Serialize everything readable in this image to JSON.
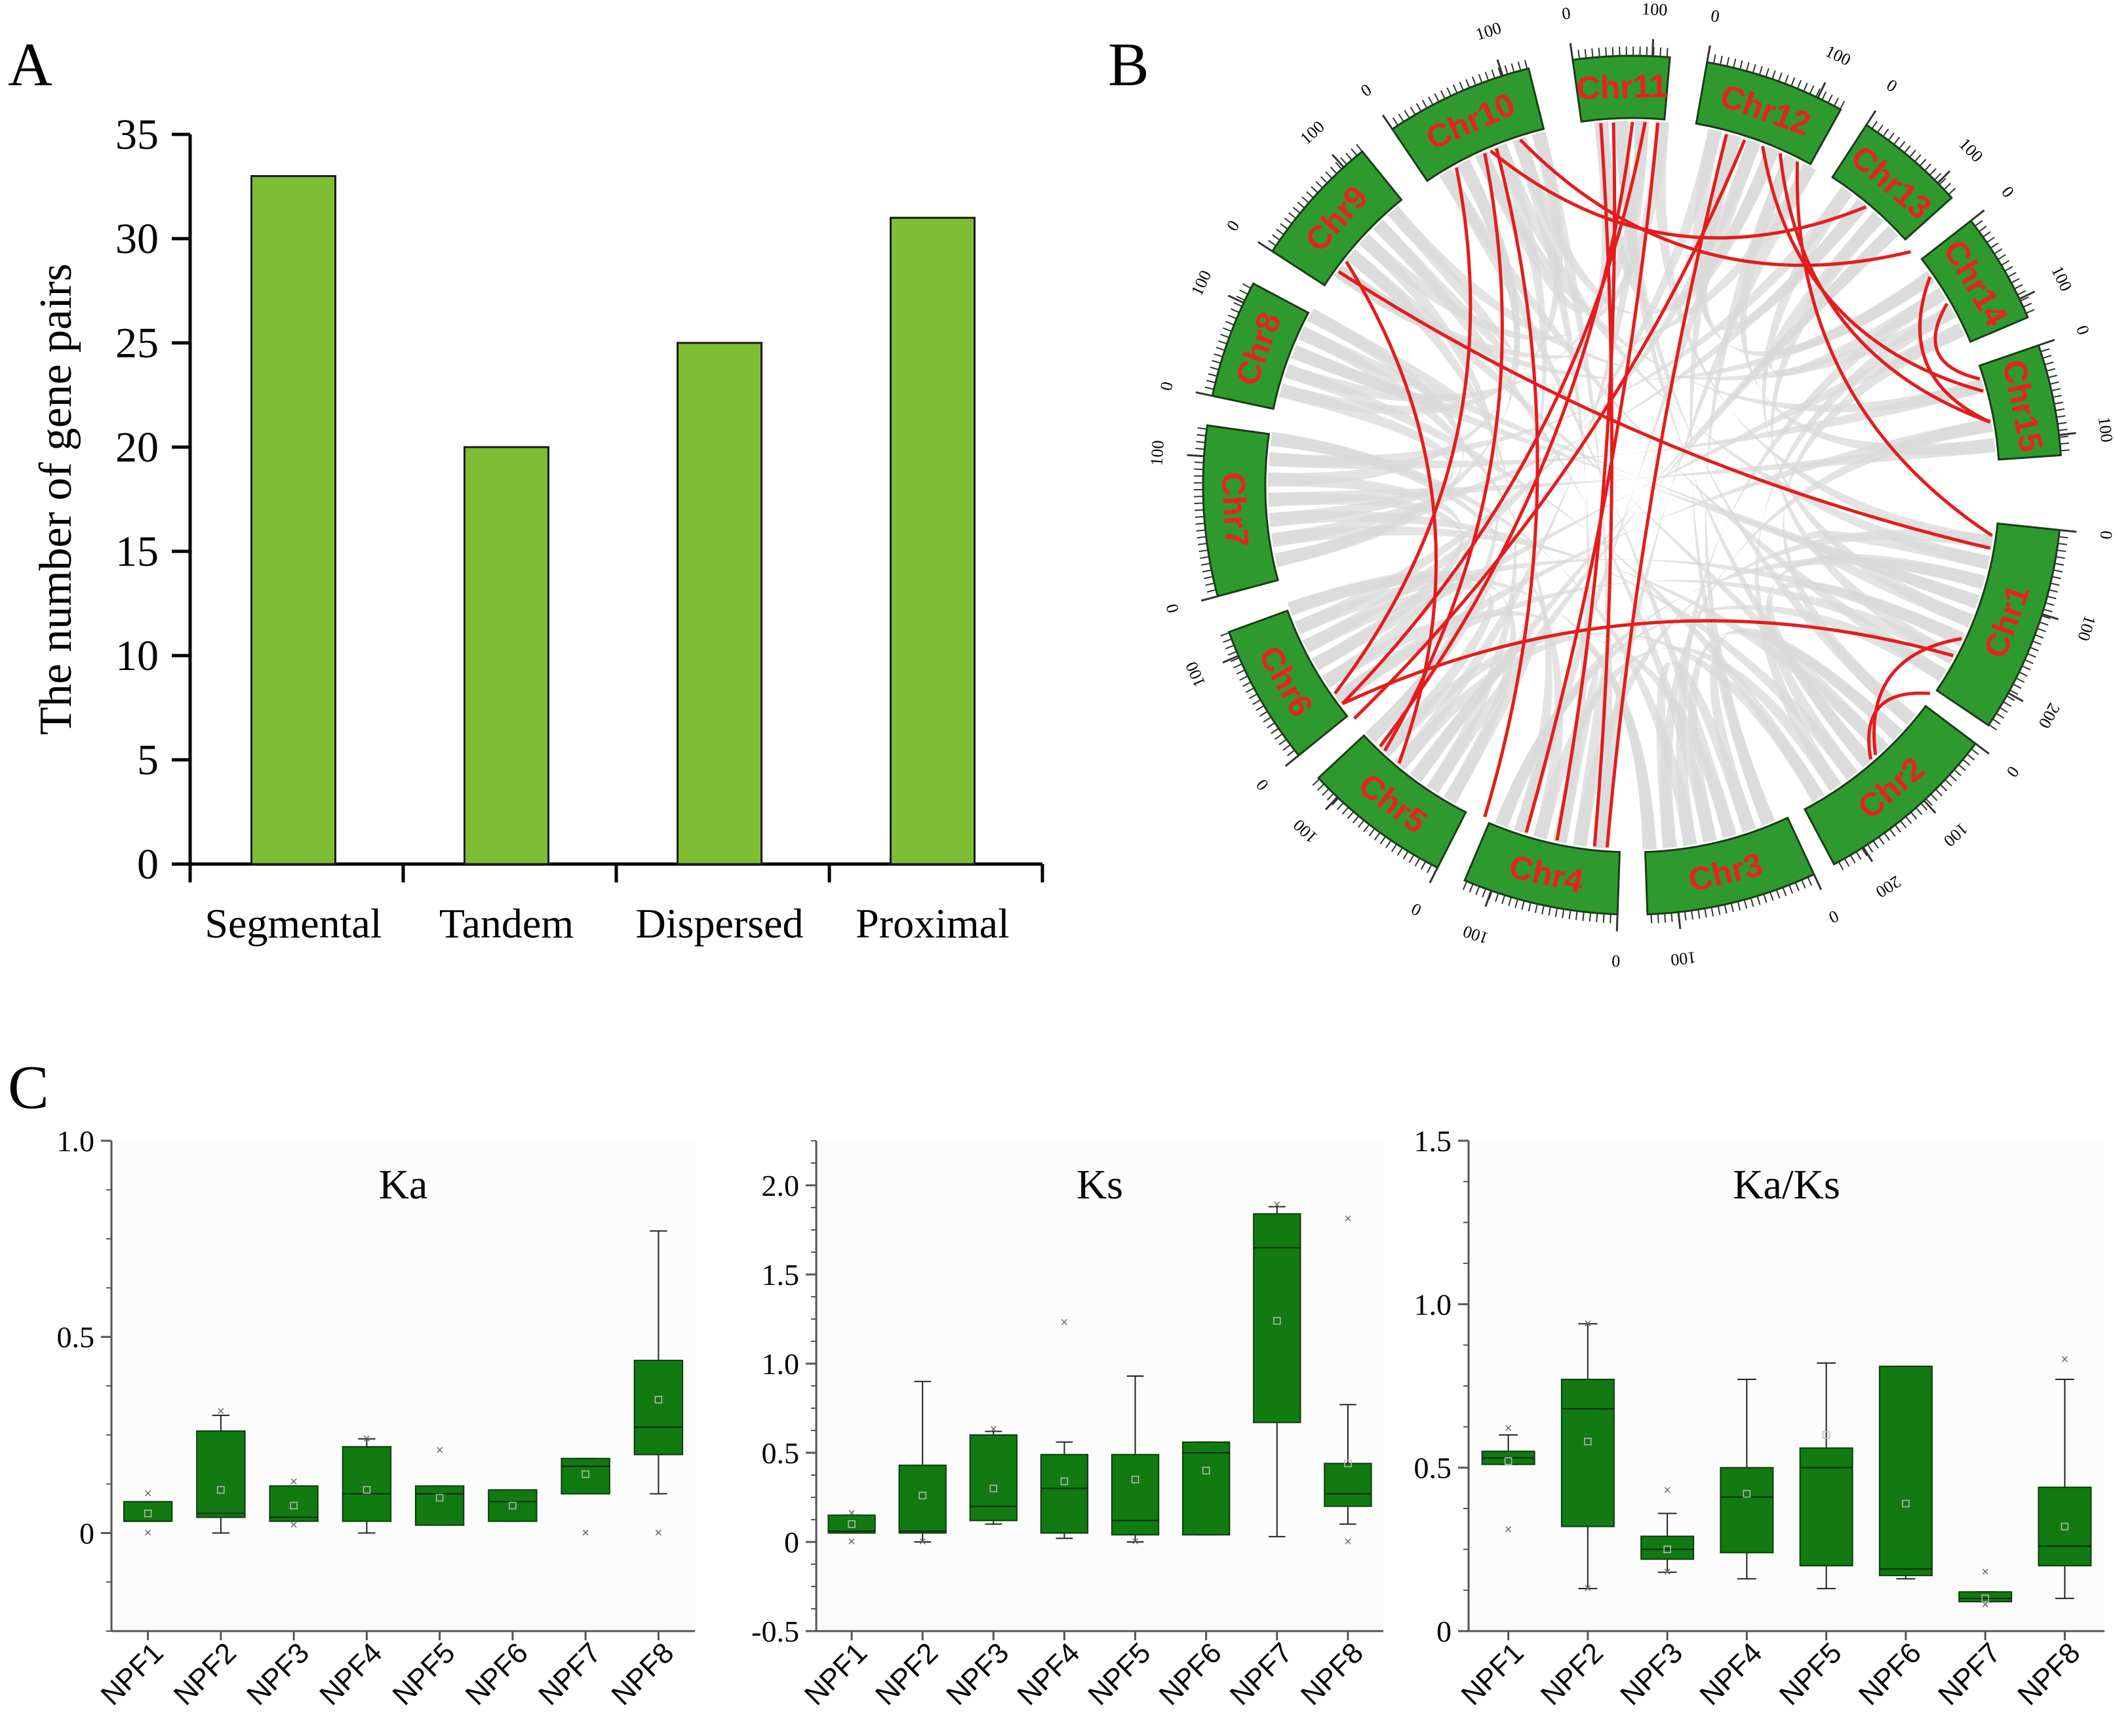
{
  "panels": {
    "A": {
      "label": "A"
    },
    "B": {
      "label": "B"
    },
    "C": {
      "label": "C"
    }
  },
  "colors": {
    "bar_fill": "#7dbe34",
    "box_fill": "#117a11",
    "chr_fill": "#2e9a2e",
    "chr_text": "#e8231f",
    "link_red": "#e51c1c",
    "link_gray": "#d9d9d9",
    "axis": "#000000"
  },
  "chart_data": [
    {
      "type": "bar",
      "panel": "A",
      "title": "",
      "ylabel": "The number of gene pairs",
      "xlabel": "",
      "categories": [
        "Segmental",
        "Tandem",
        "Dispersed",
        "Proximal"
      ],
      "values": [
        33,
        20,
        25,
        31
      ],
      "ylim": [
        0,
        35
      ],
      "yticks": [
        "0",
        "5",
        "10",
        "15",
        "20",
        "25",
        "30",
        "35"
      ],
      "grid": false
    },
    {
      "type": "circos",
      "panel": "B",
      "chromosomes": [
        {
          "name": "Chr1",
          "start_deg": 6,
          "end_deg": 34,
          "ticks": [
            "0",
            "100",
            "200"
          ]
        },
        {
          "name": "Chr2",
          "start_deg": 37,
          "end_deg": 62,
          "ticks": [
            "0",
            "100",
            "200"
          ]
        },
        {
          "name": "Chr3",
          "start_deg": 65,
          "end_deg": 88,
          "ticks": [
            "0",
            "100"
          ]
        },
        {
          "name": "Chr4",
          "start_deg": 92,
          "end_deg": 113,
          "ticks": [
            "0",
            "100"
          ]
        },
        {
          "name": "Chr5",
          "start_deg": 117,
          "end_deg": 137,
          "ticks": [
            "0",
            "100"
          ]
        },
        {
          "name": "Chr6",
          "start_deg": 141,
          "end_deg": 160,
          "ticks": [
            "0",
            "100"
          ]
        },
        {
          "name": "Chr7",
          "start_deg": 165,
          "end_deg": 188,
          "ticks": [
            "0",
            "100"
          ]
        },
        {
          "name": "Chr8",
          "start_deg": 192,
          "end_deg": 208,
          "ticks": [
            "0",
            "100"
          ]
        },
        {
          "name": "Chr9",
          "start_deg": 213,
          "end_deg": 231,
          "ticks": [
            "0",
            "100"
          ]
        },
        {
          "name": "Chr10",
          "start_deg": 236,
          "end_deg": 256,
          "ticks": [
            "0",
            "100"
          ]
        },
        {
          "name": "Chr11",
          "start_deg": 262,
          "end_deg": 275,
          "ticks": [
            "0",
            "100"
          ]
        },
        {
          "name": "Chr12",
          "start_deg": 280,
          "end_deg": 299,
          "ticks": [
            "0",
            "100"
          ]
        },
        {
          "name": "Chr13",
          "start_deg": 303,
          "end_deg": 318,
          "ticks": [
            "0",
            "100"
          ]
        },
        {
          "name": "Chr14",
          "start_deg": 322,
          "end_deg": 337,
          "ticks": [
            "0",
            "100"
          ]
        },
        {
          "name": "Chr15",
          "start_deg": 341,
          "end_deg": 356,
          "ticks": [
            "0",
            "100"
          ]
        }
      ],
      "red_links": [
        [
          218,
          130
        ],
        [
          241,
          145
        ],
        [
          246,
          133
        ],
        [
          248,
          114
        ],
        [
          252,
          320
        ],
        [
          265,
          96
        ],
        [
          267,
          102
        ],
        [
          270,
          134
        ],
        [
          272,
          143
        ],
        [
          274,
          107
        ],
        [
          285,
          94
        ],
        [
          288,
          140
        ],
        [
          291,
          345
        ],
        [
          294,
          350
        ],
        [
          297,
          8
        ],
        [
          310,
          247
        ],
        [
          325,
          350
        ],
        [
          330,
          343
        ],
        [
          28,
          143
        ],
        [
          35,
          49
        ],
        [
          48,
          25
        ],
        [
          216,
          10
        ]
      ]
    },
    {
      "type": "box",
      "panel": "C1",
      "title": "Ka",
      "categories": [
        "NPF1",
        "NPF2",
        "NPF3",
        "NPF4",
        "NPF5",
        "NPF6",
        "NPF7",
        "NPF8"
      ],
      "ylim": [
        -0.25,
        1.0
      ],
      "yticks": [
        "0",
        "0.5",
        "1.0"
      ],
      "boxes": [
        {
          "min": 0.03,
          "q1": 0.03,
          "median": 0.03,
          "q3": 0.08,
          "max": 0.08,
          "mean": 0.05,
          "outliers": [
            0.0,
            0.1
          ]
        },
        {
          "min": 0.0,
          "q1": 0.04,
          "median": 0.05,
          "q3": 0.26,
          "max": 0.3,
          "mean": 0.11,
          "outliers": [
            0.31
          ]
        },
        {
          "min": 0.03,
          "q1": 0.03,
          "median": 0.04,
          "q3": 0.12,
          "max": 0.12,
          "mean": 0.07,
          "outliers": [
            0.13,
            0.02
          ]
        },
        {
          "min": 0.0,
          "q1": 0.03,
          "median": 0.1,
          "q3": 0.22,
          "max": 0.24,
          "mean": 0.11,
          "outliers": [
            0.24
          ]
        },
        {
          "min": 0.02,
          "q1": 0.02,
          "median": 0.1,
          "q3": 0.12,
          "max": 0.12,
          "mean": 0.09,
          "outliers": [
            0.21
          ]
        },
        {
          "min": 0.03,
          "q1": 0.03,
          "median": 0.08,
          "q3": 0.11,
          "max": 0.11,
          "mean": 0.07,
          "outliers": []
        },
        {
          "min": 0.1,
          "q1": 0.1,
          "median": 0.17,
          "q3": 0.19,
          "max": 0.19,
          "mean": 0.15,
          "outliers": [
            0.0
          ]
        },
        {
          "min": 0.1,
          "q1": 0.2,
          "median": 0.27,
          "q3": 0.44,
          "max": 0.77,
          "mean": 0.34,
          "outliers": [
            0.0
          ]
        }
      ]
    },
    {
      "type": "box",
      "panel": "C2",
      "title": "Ks",
      "categories": [
        "NPF1",
        "NPF2",
        "NPF3",
        "NPF4",
        "NPF5",
        "NPF6",
        "NPF7",
        "NPF8"
      ],
      "ylim": [
        -0.5,
        2.25
      ],
      "yticks": [
        "-0.5",
        "0",
        "0.5",
        "1.0",
        "1.5",
        "2.0"
      ],
      "boxes": [
        {
          "min": 0.05,
          "q1": 0.05,
          "median": 0.06,
          "q3": 0.15,
          "max": 0.15,
          "mean": 0.1,
          "outliers": [
            0.0,
            0.16
          ]
        },
        {
          "min": 0.0,
          "q1": 0.05,
          "median": 0.06,
          "q3": 0.43,
          "max": 0.9,
          "mean": 0.26,
          "outliers": [
            0.0
          ]
        },
        {
          "min": 0.1,
          "q1": 0.12,
          "median": 0.2,
          "q3": 0.6,
          "max": 0.62,
          "mean": 0.3,
          "outliers": [
            0.63
          ]
        },
        {
          "min": 0.02,
          "q1": 0.05,
          "median": 0.3,
          "q3": 0.49,
          "max": 0.56,
          "mean": 0.34,
          "outliers": [
            1.23
          ]
        },
        {
          "min": 0.0,
          "q1": 0.04,
          "median": 0.12,
          "q3": 0.49,
          "max": 0.93,
          "mean": 0.35,
          "outliers": [
            0.0
          ]
        },
        {
          "min": 0.04,
          "q1": 0.04,
          "median": 0.5,
          "q3": 0.56,
          "max": 0.56,
          "mean": 0.4,
          "outliers": []
        },
        {
          "min": 0.03,
          "q1": 0.67,
          "median": 1.65,
          "q3": 1.84,
          "max": 1.88,
          "mean": 1.24,
          "outliers": [
            1.89
          ]
        },
        {
          "min": 0.1,
          "q1": 0.2,
          "median": 0.27,
          "q3": 0.44,
          "max": 0.77,
          "mean": 0.44,
          "outliers": [
            1.81,
            0.0
          ]
        }
      ]
    },
    {
      "type": "box",
      "panel": "C3",
      "title": "Ka/Ks",
      "categories": [
        "NPF1",
        "NPF2",
        "NPF3",
        "NPF4",
        "NPF5",
        "NPF6",
        "NPF7",
        "NPF8"
      ],
      "ylim": [
        0,
        1.5
      ],
      "yticks": [
        "0",
        "0.5",
        "1.0",
        "1.5"
      ],
      "boxes": [
        {
          "min": 0.51,
          "q1": 0.51,
          "median": 0.53,
          "q3": 0.55,
          "max": 0.6,
          "mean": 0.52,
          "outliers": [
            0.31,
            0.62
          ]
        },
        {
          "min": 0.13,
          "q1": 0.32,
          "median": 0.68,
          "q3": 0.77,
          "max": 0.94,
          "mean": 0.58,
          "outliers": [
            0.94,
            0.13
          ]
        },
        {
          "min": 0.18,
          "q1": 0.22,
          "median": 0.25,
          "q3": 0.29,
          "max": 0.36,
          "mean": 0.25,
          "outliers": [
            0.43,
            0.18
          ]
        },
        {
          "min": 0.16,
          "q1": 0.24,
          "median": 0.41,
          "q3": 0.5,
          "max": 0.77,
          "mean": 0.42,
          "outliers": []
        },
        {
          "min": 0.13,
          "q1": 0.2,
          "median": 0.5,
          "q3": 0.56,
          "max": 0.82,
          "mean": 0.6,
          "outliers": []
        },
        {
          "min": 0.16,
          "q1": 0.17,
          "median": 0.19,
          "q3": 0.81,
          "max": 0.81,
          "mean": 0.39,
          "outliers": []
        },
        {
          "min": 0.09,
          "q1": 0.09,
          "median": 0.1,
          "q3": 0.12,
          "max": 0.12,
          "mean": 0.1,
          "outliers": [
            0.18,
            0.08
          ]
        },
        {
          "min": 0.1,
          "q1": 0.2,
          "median": 0.26,
          "q3": 0.44,
          "max": 0.77,
          "mean": 0.32,
          "outliers": [
            0.83
          ]
        }
      ]
    }
  ]
}
